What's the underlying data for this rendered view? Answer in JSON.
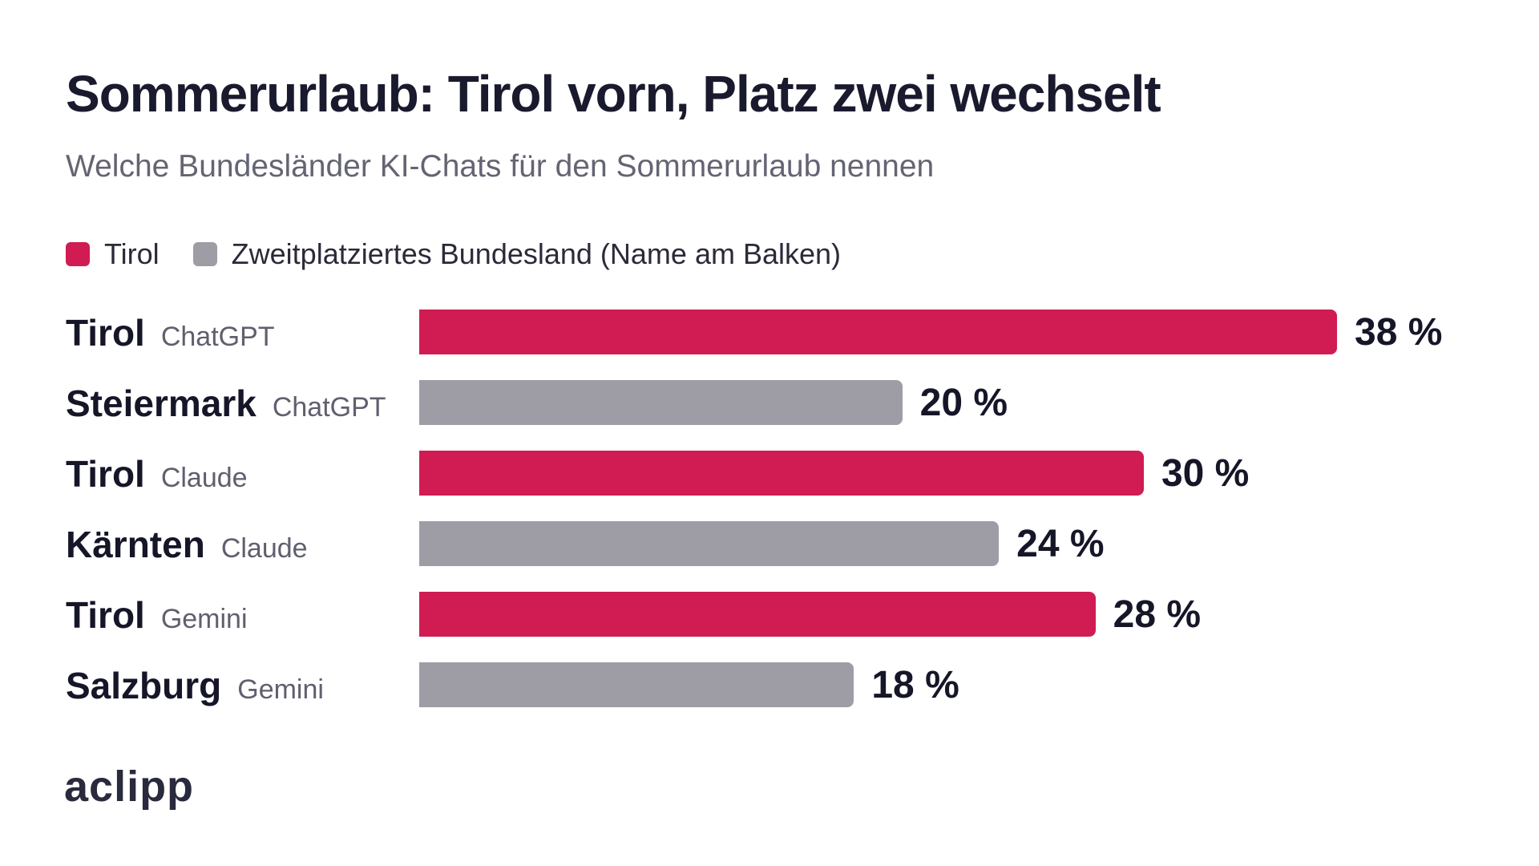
{
  "title": "Sommerurlaub: Tirol vorn, Platz zwei wechselt",
  "subtitle": "Welche Bundesländer KI-Chats für den Sommerurlaub nennen",
  "legend": [
    {
      "label": "Tirol",
      "color": "#d01c52"
    },
    {
      "label": "Zweitplatziertes Bundesland (Name am Balken)",
      "color": "#9e9ca5"
    }
  ],
  "brand": "aclipp",
  "colors": {
    "tirol": "#d01c52",
    "second": "#9e9ca5"
  },
  "chart_data": {
    "type": "bar",
    "orientation": "horizontal",
    "unit": "%",
    "xlim": [
      0,
      38
    ],
    "rows": [
      {
        "name": "Tirol",
        "model": "ChatGPT",
        "value": 38,
        "label": "38 %",
        "group": "tirol"
      },
      {
        "name": "Steiermark",
        "model": "ChatGPT",
        "value": 20,
        "label": "20 %",
        "group": "second"
      },
      {
        "name": "Tirol",
        "model": "Claude",
        "value": 30,
        "label": "30 %",
        "group": "tirol"
      },
      {
        "name": "Kärnten",
        "model": "Claude",
        "value": 24,
        "label": "24 %",
        "group": "second"
      },
      {
        "name": "Tirol",
        "model": "Gemini",
        "value": 28,
        "label": "28 %",
        "group": "tirol"
      },
      {
        "name": "Salzburg",
        "model": "Gemini",
        "value": 18,
        "label": "18 %",
        "group": "second"
      }
    ]
  }
}
